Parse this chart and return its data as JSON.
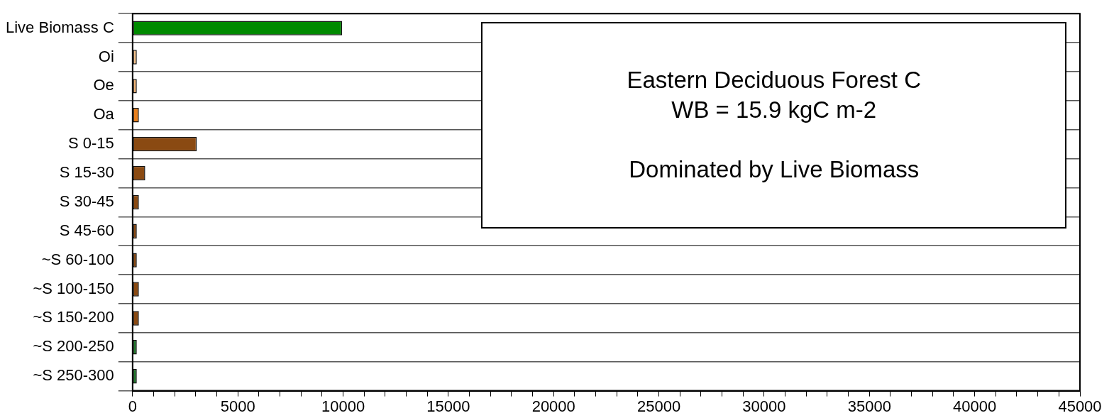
{
  "chart_data": {
    "type": "bar",
    "orientation": "horizontal",
    "categories": [
      "Live Biomass C",
      "Oi",
      "Oe",
      "Oa",
      "S 0-15",
      "S 15-30",
      "S 30-45",
      "S 45-60",
      "~S 60-100",
      "~S 100-150",
      "~S 150-200",
      "~S 200-250",
      "~S 250-300"
    ],
    "values": [
      9950,
      200,
      200,
      300,
      3050,
      600,
      300,
      200,
      200,
      300,
      300,
      200,
      200
    ],
    "colors": [
      "#008a00",
      "#f3c089",
      "#f0b274",
      "#e8801e",
      "#8a4a12",
      "#8a4a12",
      "#8a4a12",
      "#8a4a12",
      "#8a4a12",
      "#8a4a12",
      "#8a4a12",
      "#1f7a2a",
      "#1f7a2a"
    ],
    "xlim": [
      0,
      45000
    ],
    "xticks": [
      0,
      {
        "value": 1000,
        "label": null
      },
      {
        "value": 2000,
        "label": null
      },
      {
        "value": 3000,
        "label": null
      },
      {
        "value": 4000,
        "label": null
      },
      5000,
      {
        "value": 6000,
        "label": null
      },
      {
        "value": 7000,
        "label": null
      },
      {
        "value": 8000,
        "label": null
      },
      {
        "value": 9000,
        "label": null
      },
      10000,
      {
        "value": 11000,
        "label": null
      },
      {
        "value": 12000,
        "label": null
      },
      {
        "value": 13000,
        "label": null
      },
      {
        "value": 14000,
        "label": null
      },
      15000,
      {
        "value": 16000,
        "label": null
      },
      {
        "value": 17000,
        "label": null
      },
      {
        "value": 18000,
        "label": null
      },
      {
        "value": 19000,
        "label": null
      },
      20000,
      {
        "value": 21000,
        "label": null
      },
      {
        "value": 22000,
        "label": null
      },
      {
        "value": 23000,
        "label": null
      },
      {
        "value": 24000,
        "label": null
      },
      25000,
      {
        "value": 26000,
        "label": null
      },
      {
        "value": 27000,
        "label": null
      },
      {
        "value": 28000,
        "label": null
      },
      {
        "value": 29000,
        "label": null
      },
      30000,
      {
        "value": 31000,
        "label": null
      },
      {
        "value": 32000,
        "label": null
      },
      {
        "value": 33000,
        "label": null
      },
      {
        "value": 34000,
        "label": null
      },
      35000,
      {
        "value": 36000,
        "label": null
      },
      {
        "value": 37000,
        "label": null
      },
      {
        "value": 38000,
        "label": null
      },
      {
        "value": 39000,
        "label": null
      },
      40000,
      {
        "value": 41000,
        "label": null
      },
      {
        "value": 42000,
        "label": null
      },
      {
        "value": 43000,
        "label": null
      },
      {
        "value": 44000,
        "label": null
      },
      45000
    ],
    "grid": "y",
    "legend": false,
    "annotations": [
      "Eastern Deciduous Forest C",
      "WB = 15.9 kgC m-2",
      "Dominated by Live Biomass"
    ]
  }
}
